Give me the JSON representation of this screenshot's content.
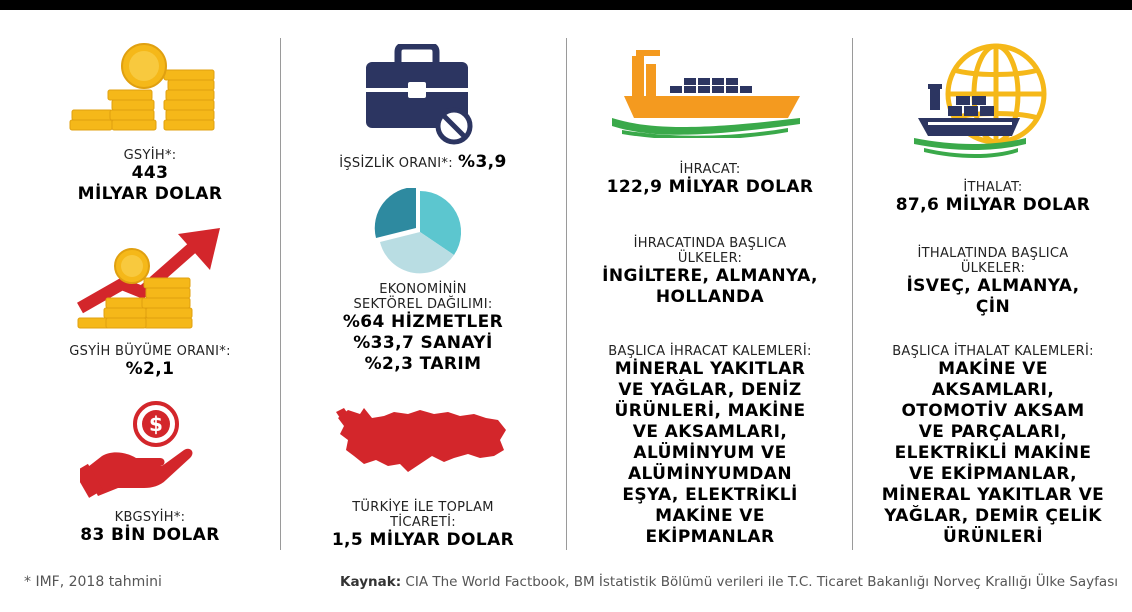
{
  "col1": {
    "gdp_label": "GSYİH*:",
    "gdp_value_1": "443",
    "gdp_value_2": "MİLYAR DOLAR",
    "growth_label": "GSYİH BÜYÜME ORANI*:",
    "growth_value": "%2,1",
    "per_capita_label": "KBGSYİH*:",
    "per_capita_value": "83 BİN DOLAR"
  },
  "col2": {
    "unemployment_label": "İŞSİZLİK ORANI*:",
    "unemployment_value": "%3,9",
    "sector_label_1": "EKONOMİNİN",
    "sector_label_2": "SEKTÖREL DAĞILIMI:",
    "sector_values": [
      "%64 HİZMETLER",
      "%33,7 SANAYİ",
      "%2,3 TARIM"
    ],
    "trade_label_1": "TÜRKİYE İLE TOPLAM",
    "trade_label_2": "TİCARETİ:",
    "trade_value": "1,5 MİLYAR DOLAR"
  },
  "col3": {
    "export_label": "İHRACAT:",
    "export_value": "122,9 MİLYAR DOLAR",
    "export_countries_label_1": "İHRACATINDA BAŞLICA",
    "export_countries_label_2": "ÜLKELER:",
    "export_countries_1": "İNGİLTERE, ALMANYA,",
    "export_countries_2": "HOLLANDA",
    "export_items_label": "BAŞLICA İHRACAT KALEMLERİ:",
    "export_items": [
      "MİNERAL YAKITLAR",
      "VE YAĞLAR, DENİZ",
      "ÜRÜNLERİ, MAKİNE",
      "VE AKSAMLARI,",
      "ALÜMİNYUM VE",
      "ALÜMİNYUMDAN",
      "EŞYA, ELEKTRİKLİ",
      "MAKİNE VE",
      "EKİPMANLAR"
    ]
  },
  "col4": {
    "import_label": "İTHALAT:",
    "import_value": "87,6 MİLYAR DOLAR",
    "import_countries_label_1": "İTHALATINDA BAŞLICA",
    "import_countries_label_2": "ÜLKELER:",
    "import_countries_1": "İSVEÇ, ALMANYA,",
    "import_countries_2": "ÇİN",
    "import_items_label": "BAŞLICA İTHALAT KALEMLERİ:",
    "import_items": [
      "MAKİNE VE",
      "AKSAMLARI,",
      "OTOMOTİV AKSAM",
      "VE PARÇALARI,",
      "ELEKTRİKLİ MAKİNE",
      "VE EKİPMANLAR,",
      "MİNERAL YAKITLAR VE",
      "YAĞLAR, DEMİR ÇELİK",
      "ÜRÜNLERİ"
    ]
  },
  "footer": {
    "note": "* IMF, 2018 tahmini",
    "source_label": "Kaynak:",
    "source_text": "CIA The World Factbook, BM İstatistik Bölümü verileri ile T.C. Ticaret Bakanlığı Norveç Krallığı Ülke Sayfası"
  },
  "colors": {
    "gold": "#f5b819",
    "red": "#d3262b",
    "navy": "#2c3561",
    "orange": "#f49a1f",
    "green": "#3aa94a",
    "teal_dark": "#2e8aa0",
    "teal_light": "#5cc6cf",
    "teal_pale": "#b9dde3"
  },
  "icons": [
    "coins-icon",
    "growth-arrow-icon",
    "money-hand-icon",
    "briefcase-no-icon",
    "pie-chart-icon",
    "turkey-map-icon",
    "cargo-ship-icon",
    "globe-ship-icon"
  ]
}
